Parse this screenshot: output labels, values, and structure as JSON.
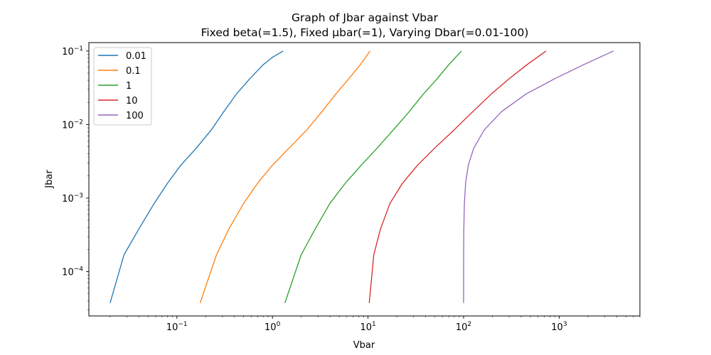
{
  "chart_data": {
    "type": "line",
    "title": "Graph of Jbar against Vbar",
    "subtitle": "Fixed beta(=1.5), Fixed µbar(=1), Varying Dbar(=0.01-100)",
    "xlabel": "Vbar",
    "ylabel": "Jbar",
    "xscale": "log",
    "yscale": "log",
    "xlim": [
      0.012,
      7000
    ],
    "ylim": [
      2.5e-05,
      0.13
    ],
    "x_ticks": [
      {
        "value": 0.1,
        "base": "10",
        "exp": "−1"
      },
      {
        "value": 1,
        "base": "10",
        "exp": "0"
      },
      {
        "value": 10,
        "base": "10",
        "exp": "1"
      },
      {
        "value": 100,
        "base": "10",
        "exp": "2"
      },
      {
        "value": 1000,
        "base": "10",
        "exp": "3"
      }
    ],
    "y_ticks": [
      {
        "value": 0.0001,
        "base": "10",
        "exp": "−4"
      },
      {
        "value": 0.001,
        "base": "10",
        "exp": "−3"
      },
      {
        "value": 0.01,
        "base": "10",
        "exp": "−2"
      },
      {
        "value": 0.1,
        "base": "10",
        "exp": "−1"
      }
    ],
    "grid": false,
    "legend_position": "top-left",
    "series": [
      {
        "name": "0.01",
        "color": "#1f77b4",
        "points": [
          [
            0.02,
            3.75e-05
          ],
          [
            0.028,
            0.00017
          ],
          [
            0.04,
            0.00038
          ],
          [
            0.058,
            0.00085
          ],
          [
            0.08,
            0.0016
          ],
          [
            0.11,
            0.0028
          ],
          [
            0.16,
            0.0048
          ],
          [
            0.23,
            0.0085
          ],
          [
            0.31,
            0.015
          ],
          [
            0.42,
            0.026
          ],
          [
            0.58,
            0.042
          ],
          [
            0.8,
            0.065
          ],
          [
            1.0,
            0.082
          ],
          [
            1.3,
            0.1
          ]
        ]
      },
      {
        "name": "0.1",
        "color": "#ff7f0e",
        "points": [
          [
            0.175,
            3.75e-05
          ],
          [
            0.26,
            0.00017
          ],
          [
            0.35,
            0.00038
          ],
          [
            0.5,
            0.00085
          ],
          [
            0.7,
            0.0016
          ],
          [
            1.0,
            0.0028
          ],
          [
            1.5,
            0.0048
          ],
          [
            2.3,
            0.0085
          ],
          [
            3.3,
            0.015
          ],
          [
            4.6,
            0.026
          ],
          [
            6.3,
            0.042
          ],
          [
            8.3,
            0.065
          ],
          [
            10.5,
            0.1
          ]
        ]
      },
      {
        "name": "1",
        "color": "#2ca02c",
        "points": [
          [
            1.35,
            3.75e-05
          ],
          [
            2.0,
            0.00017
          ],
          [
            2.8,
            0.00038
          ],
          [
            4.0,
            0.00085
          ],
          [
            5.8,
            0.0016
          ],
          [
            8.5,
            0.0028
          ],
          [
            12.5,
            0.0048
          ],
          [
            18.5,
            0.0085
          ],
          [
            27.0,
            0.015
          ],
          [
            38.0,
            0.026
          ],
          [
            53.0,
            0.042
          ],
          [
            70.0,
            0.065
          ],
          [
            95.0,
            0.1
          ]
        ]
      },
      {
        "name": "10",
        "color": "#d62728",
        "points": [
          [
            10.3,
            3.75e-05
          ],
          [
            11.5,
            0.00017
          ],
          [
            13.5,
            0.00038
          ],
          [
            17.0,
            0.00085
          ],
          [
            23.0,
            0.0016
          ],
          [
            33.0,
            0.0028
          ],
          [
            50.0,
            0.0048
          ],
          [
            80.0,
            0.0085
          ],
          [
            125.0,
            0.015
          ],
          [
            195.0,
            0.026
          ],
          [
            300.0,
            0.042
          ],
          [
            460.0,
            0.065
          ],
          [
            730.0,
            0.1
          ]
        ]
      },
      {
        "name": "100",
        "color": "#9467bd",
        "points": [
          [
            100.0,
            3.75e-05
          ],
          [
            100.2,
            0.00017
          ],
          [
            100.6,
            0.00038
          ],
          [
            102.0,
            0.00085
          ],
          [
            105.0,
            0.0016
          ],
          [
            112.0,
            0.0028
          ],
          [
            128.0,
            0.0048
          ],
          [
            165.0,
            0.0085
          ],
          [
            250.0,
            0.015
          ],
          [
            450.0,
            0.026
          ],
          [
            900.0,
            0.042
          ],
          [
            1800.0,
            0.065
          ],
          [
            3700.0,
            0.1
          ]
        ]
      }
    ]
  }
}
